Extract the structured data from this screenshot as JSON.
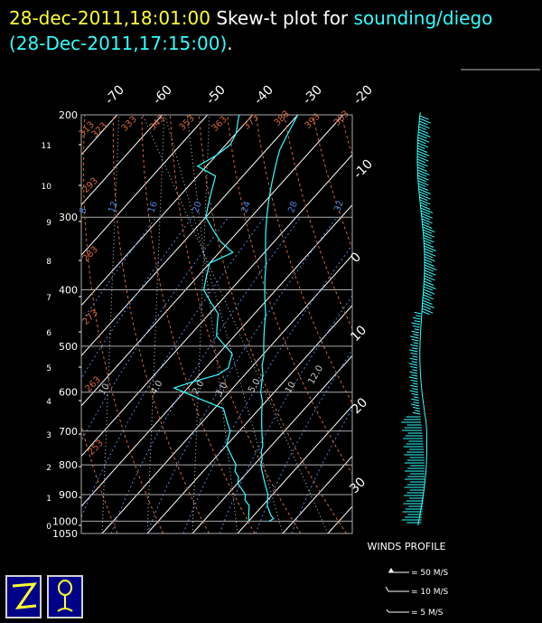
{
  "header": {
    "datetime": "28-dec-2011,18:01:00",
    "title_mid": " Skew-t plot for ",
    "station": "sounding/diego",
    "obs_time": "(28-Dec-2011,17:15:00)",
    "period": "."
  },
  "colors": {
    "background": "#000000",
    "header_time": "#ffff33",
    "station": "#33ffff",
    "profile": "#33ffff",
    "isobar": "#aaaaaa",
    "dry_adiabat": "#d2693c",
    "mixing_ratio": "#4f7fd6",
    "moist_adiabat": "#c8c8c8",
    "wind_barb": "#33ffff"
  },
  "chart_data": {
    "type": "line",
    "title": "Skew-t plot for sounding/diego",
    "pressure_levels_hpa": [
      200,
      300,
      400,
      500,
      600,
      700,
      800,
      900,
      1000,
      1050
    ],
    "height_km_ticks": [
      "0",
      "1",
      "2",
      "3",
      "4",
      "5",
      "6",
      "7",
      "8",
      "9",
      "10",
      "11"
    ],
    "temperature_ticks_c": [
      "-70",
      "-60",
      "-50",
      "-40",
      "-30",
      "-20",
      "-10",
      "0",
      "10",
      "20",
      "30"
    ],
    "dry_adiabat_labels_k": [
      "313",
      "323",
      "333",
      "343",
      "353",
      "363",
      "373",
      "383",
      "393",
      "303",
      "293",
      "283",
      "273",
      "263",
      "253"
    ],
    "mixing_ratio_labels": [
      "8",
      "12",
      "16",
      "20",
      "24",
      "28",
      "32"
    ],
    "moist_label_values": [
      "4.0",
      "2.0",
      "3.0",
      "5.0",
      "10",
      "12.0",
      "10"
    ],
    "temperature_profile": [
      [
        1000,
        14.5
      ],
      [
        990,
        15
      ],
      [
        980,
        14
      ],
      [
        960,
        12.5
      ],
      [
        940,
        11
      ],
      [
        920,
        10
      ],
      [
        900,
        9
      ],
      [
        880,
        7.5
      ],
      [
        860,
        6
      ],
      [
        840,
        4.5
      ],
      [
        820,
        3
      ],
      [
        800,
        1.5
      ],
      [
        780,
        0.5
      ],
      [
        760,
        -1
      ],
      [
        740,
        -2
      ],
      [
        720,
        -3.5
      ],
      [
        700,
        -5
      ],
      [
        680,
        -6.5
      ],
      [
        660,
        -8
      ],
      [
        640,
        -9.5
      ],
      [
        620,
        -11
      ],
      [
        600,
        -13
      ],
      [
        580,
        -14.5
      ],
      [
        560,
        -16
      ],
      [
        540,
        -18
      ],
      [
        520,
        -19.5
      ],
      [
        500,
        -21.5
      ],
      [
        480,
        -23.5
      ],
      [
        460,
        -25.5
      ],
      [
        440,
        -27.5
      ],
      [
        420,
        -30
      ],
      [
        400,
        -32.5
      ],
      [
        380,
        -35
      ],
      [
        360,
        -37.5
      ],
      [
        340,
        -40.5
      ],
      [
        320,
        -43.5
      ],
      [
        300,
        -46.5
      ],
      [
        280,
        -49.5
      ],
      [
        260,
        -52.5
      ],
      [
        240,
        -55.5
      ],
      [
        230,
        -57
      ],
      [
        220,
        -58
      ],
      [
        210,
        -59
      ],
      [
        200,
        -60
      ]
    ],
    "dewpoint_profile": [
      [
        1000,
        10
      ],
      [
        980,
        9
      ],
      [
        960,
        8
      ],
      [
        940,
        7
      ],
      [
        920,
        5
      ],
      [
        900,
        4
      ],
      [
        880,
        2
      ],
      [
        860,
        0
      ],
      [
        840,
        -1
      ],
      [
        820,
        -3
      ],
      [
        800,
        -4
      ],
      [
        780,
        -6
      ],
      [
        760,
        -8
      ],
      [
        740,
        -10
      ],
      [
        720,
        -11
      ],
      [
        700,
        -12
      ],
      [
        680,
        -14
      ],
      [
        660,
        -16
      ],
      [
        640,
        -18
      ],
      [
        620,
        -24
      ],
      [
        600,
        -30
      ],
      [
        590,
        -33
      ],
      [
        575,
        -30
      ],
      [
        560,
        -26
      ],
      [
        545,
        -25
      ],
      [
        530,
        -26
      ],
      [
        515,
        -27
      ],
      [
        500,
        -30
      ],
      [
        480,
        -34
      ],
      [
        460,
        -36
      ],
      [
        440,
        -38
      ],
      [
        420,
        -42
      ],
      [
        400,
        -46
      ],
      [
        380,
        -48
      ],
      [
        360,
        -50
      ],
      [
        345,
        -47
      ],
      [
        330,
        -52
      ],
      [
        315,
        -56
      ],
      [
        300,
        -60
      ],
      [
        285,
        -62
      ],
      [
        270,
        -64
      ],
      [
        255,
        -66
      ],
      [
        245,
        -72
      ],
      [
        235,
        -70
      ],
      [
        225,
        -69
      ],
      [
        215,
        -70
      ],
      [
        205,
        -72
      ],
      [
        200,
        -73
      ]
    ],
    "xlabel": "",
    "ylabel": "",
    "grid": true
  },
  "legend": {
    "title": "WINDS PROFILE",
    "items": [
      {
        "label": "= 50 M/S"
      },
      {
        "label": "= 10 M/S"
      },
      {
        "label": "= 5 M/S"
      }
    ]
  }
}
